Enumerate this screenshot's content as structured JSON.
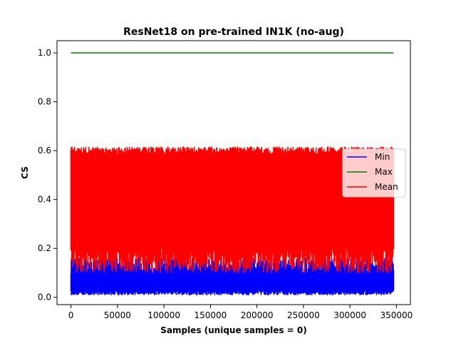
{
  "chart_data": {
    "type": "line",
    "title": "ResNet18 on pre-trained IN1K (no-aug)",
    "xlabel": "Samples (unique samples = 0)",
    "ylabel": "CS",
    "xlim": [
      -15000,
      365000
    ],
    "ylim": [
      -0.03,
      1.05
    ],
    "x_ticks": [
      0,
      50000,
      100000,
      150000,
      200000,
      250000,
      300000,
      350000
    ],
    "x_tick_labels": [
      "0",
      "50000",
      "100000",
      "150000",
      "200000",
      "250000",
      "300000",
      "350000"
    ],
    "y_ticks": [
      0.0,
      0.2,
      0.4,
      0.6,
      0.8,
      1.0
    ],
    "y_tick_labels": [
      "0.0",
      "0.2",
      "0.4",
      "0.6",
      "0.8",
      "1.0"
    ],
    "grid": false,
    "legend_position": "center-right",
    "x_range": [
      0,
      347000
    ],
    "series": [
      {
        "name": "Min",
        "color": "#0000ff",
        "band_low": [
          0.01,
          0.03
        ],
        "band_high": [
          0.09,
          0.16
        ],
        "typical": 0.05
      },
      {
        "name": "Max",
        "color": "#008000",
        "values": [
          1.0,
          1.0
        ]
      },
      {
        "name": "Mean",
        "color": "#ff0000",
        "band_low": [
          0.1,
          0.22
        ],
        "band_high": [
          0.58,
          0.615
        ],
        "typical": 0.4
      }
    ]
  }
}
